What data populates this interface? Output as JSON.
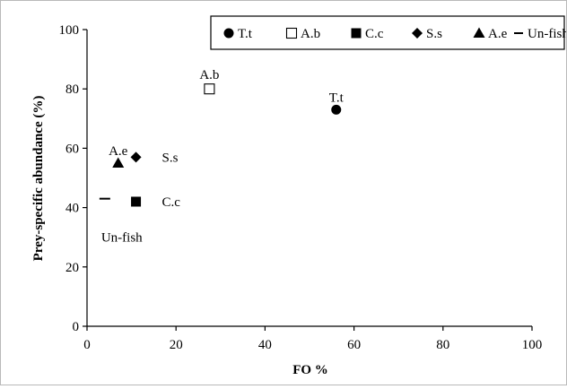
{
  "chart_data": {
    "type": "scatter",
    "xlabel": "FO %",
    "ylabel": "Prey-specific abundance  (%)",
    "xlim": [
      0,
      100
    ],
    "ylim": [
      0,
      100
    ],
    "xticks": [
      "0",
      "20",
      "40",
      "60",
      "80",
      "100"
    ],
    "yticks": [
      "0",
      "20",
      "40",
      "60",
      "80",
      "100"
    ],
    "grid": false,
    "legend_position": "top-right",
    "series": [
      {
        "name": "T.t",
        "marker": "filled-circle",
        "x": 56,
        "y": 73,
        "label": "T.t"
      },
      {
        "name": "A.b",
        "marker": "open-square",
        "x": 27.5,
        "y": 80,
        "label": "A.b"
      },
      {
        "name": "C.c",
        "marker": "filled-square",
        "x": 11,
        "y": 42,
        "label": "C.c"
      },
      {
        "name": "S.s",
        "marker": "filled-diamond",
        "x": 11,
        "y": 57,
        "label": "S.s"
      },
      {
        "name": "A.e",
        "marker": "filled-triangle",
        "x": 7,
        "y": 55,
        "label": "A.e"
      },
      {
        "name": "Un-fish",
        "marker": "dash",
        "x": 4,
        "y": 43,
        "label": "Un-fish"
      }
    ]
  },
  "colors": {
    "marker": "#000000",
    "axis": "#000000",
    "frame": "#b9b9b9"
  }
}
